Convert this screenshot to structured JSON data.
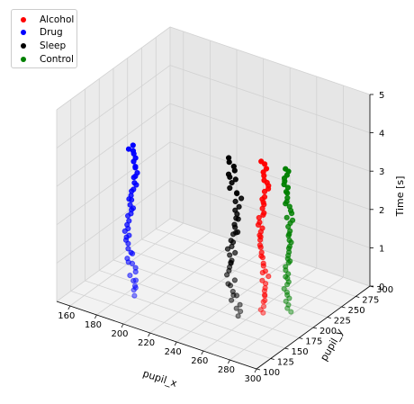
{
  "chart_data": {
    "type": "scatter3d",
    "xlabel": "pupil_x",
    "ylabel": "pupil_y",
    "zlabel": "Time [s]",
    "xlim": [
      150,
      300
    ],
    "ylim": [
      100,
      300
    ],
    "zlim": [
      0,
      5
    ],
    "x_ticks": [
      "160",
      "180",
      "200",
      "220",
      "240",
      "260",
      "280",
      "300"
    ],
    "y_ticks": [
      "100",
      "125",
      "150",
      "175",
      "200",
      "225",
      "250",
      "275",
      "300"
    ],
    "z_ticks": [
      "0",
      "1",
      "2",
      "3",
      "4",
      "5"
    ],
    "grid": true,
    "legend_position": "top-left",
    "series": [
      {
        "name": "Alcohol",
        "color": "#ff0000",
        "x": 264,
        "y": 196,
        "z_range": [
          0.0,
          3.95
        ],
        "wobble": 1.8
      },
      {
        "name": "Drug",
        "color": "#0000ff",
        "x": 185,
        "y": 150,
        "z_range": [
          0.05,
          3.95
        ],
        "wobble": 2.2
      },
      {
        "name": "Sleep",
        "color": "#000000",
        "x": 250,
        "y": 178,
        "z_range": [
          0.0,
          4.0
        ],
        "wobble": 2.8
      },
      {
        "name": "Control",
        "color": "#008000",
        "x": 276,
        "y": 213,
        "z_range": [
          0.0,
          3.7
        ],
        "wobble": 1.5
      }
    ]
  }
}
